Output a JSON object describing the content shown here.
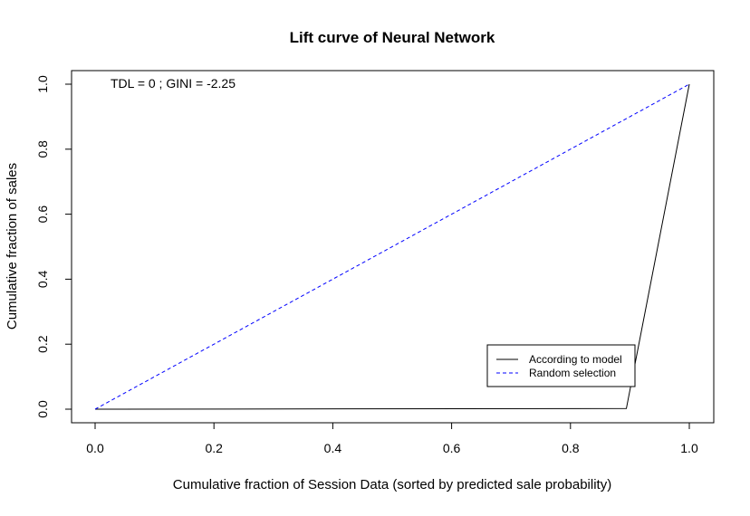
{
  "chart_data": {
    "type": "line",
    "title": "Lift curve of Neural Network",
    "xlabel": "Cumulative fraction of Session Data (sorted by predicted sale probability)",
    "ylabel": "Cumulative fraction of sales",
    "xlim": [
      0,
      1
    ],
    "ylim": [
      0,
      1
    ],
    "x_ticks": [
      "0.0",
      "0.2",
      "0.4",
      "0.6",
      "0.8",
      "1.0"
    ],
    "y_ticks": [
      "0.0",
      "0.2",
      "0.4",
      "0.6",
      "0.8",
      "1.0"
    ],
    "grid": false,
    "legend_position": "bottom-right",
    "annotation": "TDL =  0 ; GINI =  -2.25",
    "series": [
      {
        "name": "According to model",
        "color": "#000000",
        "dash": "solid",
        "x": [
          0,
          0.894,
          1.0
        ],
        "y": [
          0,
          0.002,
          1.0
        ]
      },
      {
        "name": "Random selection",
        "color": "#0000ff",
        "dash": "dashed",
        "x": [
          0,
          1.0
        ],
        "y": [
          0,
          1.0
        ]
      }
    ]
  }
}
